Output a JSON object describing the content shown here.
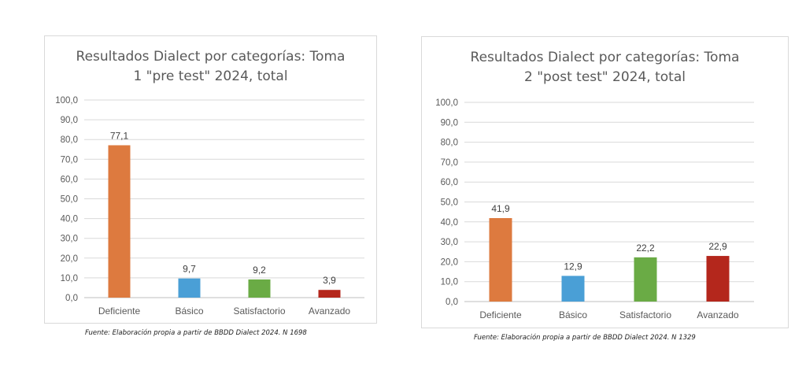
{
  "chart_data": [
    {
      "type": "bar",
      "title_lines": [
        "Resultados Dialect por categorías: Toma",
        "1 \"pre test\" 2024, total"
      ],
      "categories": [
        "Deficiente",
        "Básico",
        "Satisfactorio",
        "Avanzado"
      ],
      "values": [
        77.1,
        9.7,
        9.2,
        3.9
      ],
      "value_labels": [
        "77,1",
        "9,7",
        "9,2",
        "3,9"
      ],
      "colors": [
        "#dd7a3f",
        "#4a9fd6",
        "#6aab45",
        "#b4271c"
      ],
      "ylim": [
        0,
        100
      ],
      "yticks": [
        "0,0",
        "10,0",
        "20,0",
        "30,0",
        "40,0",
        "50,0",
        "60,0",
        "70,0",
        "80,0",
        "90,0",
        "100,0"
      ],
      "grid": true,
      "legend": "none"
    },
    {
      "type": "bar",
      "title_lines": [
        "Resultados Dialect por categorías: Toma",
        "2 \"post test\" 2024, total"
      ],
      "categories": [
        "Deficiente",
        "Básico",
        "Satisfactorio",
        "Avanzado"
      ],
      "values": [
        41.9,
        12.9,
        22.2,
        22.9
      ],
      "value_labels": [
        "41,9",
        "12,9",
        "22,2",
        "22,9"
      ],
      "colors": [
        "#dd7a3f",
        "#4a9fd6",
        "#6aab45",
        "#b4271c"
      ],
      "ylim": [
        0,
        100
      ],
      "yticks": [
        "0,0",
        "10,0",
        "20,0",
        "30,0",
        "40,0",
        "50,0",
        "60,0",
        "70,0",
        "80,0",
        "90,0",
        "100,0"
      ],
      "grid": true,
      "legend": "none"
    }
  ],
  "captions": [
    "Fuente: Elaboración propia a partir de BBDD Dialect 2024. N 1698",
    "Fuente: Elaboración propia a partir de BBDD Dialect 2024. N 1329"
  ]
}
